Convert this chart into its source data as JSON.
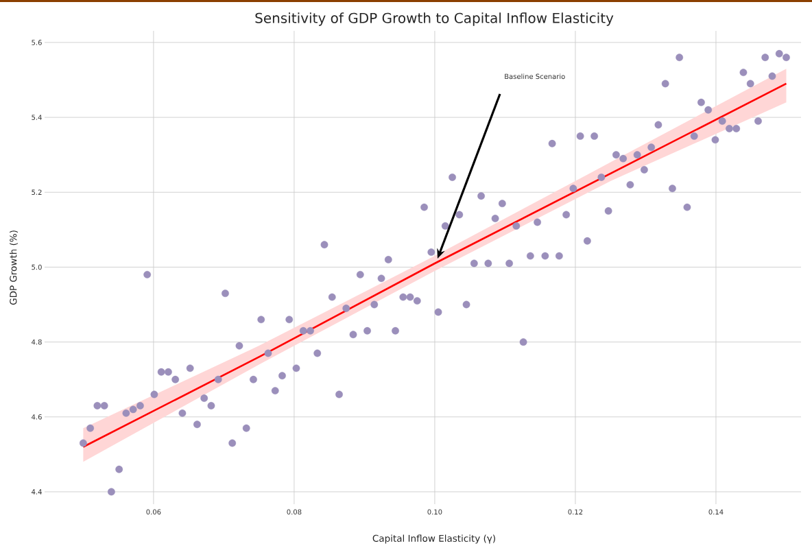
{
  "chart_data": {
    "type": "scatter",
    "title": "Sensitivity of GDP Growth to Capital Inflow Elasticity",
    "xlabel": "Capital Inflow Elasticity (γ)",
    "ylabel": "GDP Growth (%)",
    "xlim": [
      0.0445,
      0.1521
    ],
    "ylim": [
      4.367,
      5.631
    ],
    "xticks": [
      0.06,
      0.08,
      {
        "value": 0.1,
        "label": "0.10"
      },
      0.12,
      0.14
    ],
    "yticks": [
      {
        "value": 4.4,
        "label": "4.4"
      },
      {
        "value": 4.6,
        "label": "4.6"
      },
      {
        "value": 4.8,
        "label": "4.8"
      },
      {
        "value": 5.0,
        "label": "5.0"
      },
      {
        "value": 5.2,
        "label": "5.2"
      },
      {
        "value": 5.4,
        "label": "5.4"
      },
      {
        "value": 5.6,
        "label": "5.6"
      }
    ],
    "grid": true,
    "annotations": [
      "Baseline Scenario"
    ],
    "series": [
      {
        "marker": "circle",
        "color": "#9b8fbb",
        "x": [
          0.05,
          0.051,
          0.052,
          0.053,
          0.054,
          0.0551,
          0.0561,
          0.0571,
          0.0581,
          0.0591,
          0.0601,
          0.0611,
          0.0621,
          0.0631,
          0.0641,
          0.0652,
          0.0662,
          0.0672,
          0.0682,
          0.0692,
          0.0702,
          0.0712,
          0.0722,
          0.0732,
          0.0742,
          0.0753,
          0.0763,
          0.0773,
          0.0783,
          0.0793,
          0.0803,
          0.0813,
          0.0823,
          0.0833,
          0.0843,
          0.0854,
          0.0864,
          0.0874,
          0.0884,
          0.0894,
          0.0904,
          0.0914,
          0.0924,
          0.0934,
          0.0944,
          0.0955,
          0.0965,
          0.0975,
          0.0985,
          0.0995,
          0.1005,
          0.1015,
          0.1025,
          0.1035,
          0.1045,
          0.1056,
          0.1066,
          0.1076,
          0.1086,
          0.1096,
          0.1106,
          0.1116,
          0.1126,
          0.1136,
          0.1146,
          0.1157,
          0.1167,
          0.1177,
          0.1187,
          0.1197,
          0.1207,
          0.1217,
          0.1227,
          0.1237,
          0.1247,
          0.1258,
          0.1268,
          0.1278,
          0.1288,
          0.1298,
          0.1308,
          0.1318,
          0.1328,
          0.1338,
          0.1348,
          0.1359,
          0.1369,
          0.1379,
          0.1389,
          0.1399,
          0.1409,
          0.1419,
          0.1429,
          0.1439,
          0.1449,
          0.146,
          0.147,
          0.148,
          0.149,
          0.15
        ],
        "values": [
          4.53,
          4.57,
          4.63,
          4.63,
          4.4,
          4.46,
          4.61,
          4.62,
          4.63,
          4.98,
          4.66,
          4.72,
          4.72,
          4.7,
          4.61,
          4.73,
          4.58,
          4.65,
          4.63,
          4.7,
          4.93,
          4.53,
          4.79,
          4.57,
          4.7,
          4.86,
          4.77,
          4.67,
          4.71,
          4.86,
          4.73,
          4.83,
          4.83,
          4.77,
          5.06,
          4.92,
          4.66,
          4.89,
          4.82,
          4.98,
          4.83,
          4.9,
          4.97,
          5.02,
          4.83,
          4.92,
          4.92,
          4.91,
          5.16,
          5.04,
          4.88,
          5.11,
          5.24,
          5.14,
          4.9,
          5.01,
          5.19,
          5.01,
          5.13,
          5.17,
          5.01,
          5.11,
          4.8,
          5.03,
          5.12,
          5.03,
          5.33,
          5.03,
          5.14,
          5.21,
          5.35,
          5.07,
          5.35,
          5.24,
          5.15,
          5.3,
          5.29,
          5.22,
          5.3,
          5.26,
          5.32,
          5.38,
          5.49,
          5.21,
          5.56,
          5.16,
          5.35,
          5.44,
          5.42,
          5.34,
          5.39,
          5.37,
          5.37,
          5.52,
          5.49,
          5.39,
          5.56,
          5.51,
          5.57,
          5.56
        ]
      },
      {
        "type": "line",
        "marker": "none",
        "color": "#ff0000",
        "line_style": "solid",
        "x": [
          0.05,
          0.075,
          0.1,
          0.125,
          0.15
        ],
        "values": [
          4.52,
          4.76,
          5.01,
          5.25,
          5.49
        ],
        "lower": [
          4.48,
          4.74,
          4.99,
          5.23,
          5.44
        ],
        "upper": [
          4.57,
          4.79,
          5.03,
          5.28,
          5.53
        ]
      }
    ]
  }
}
